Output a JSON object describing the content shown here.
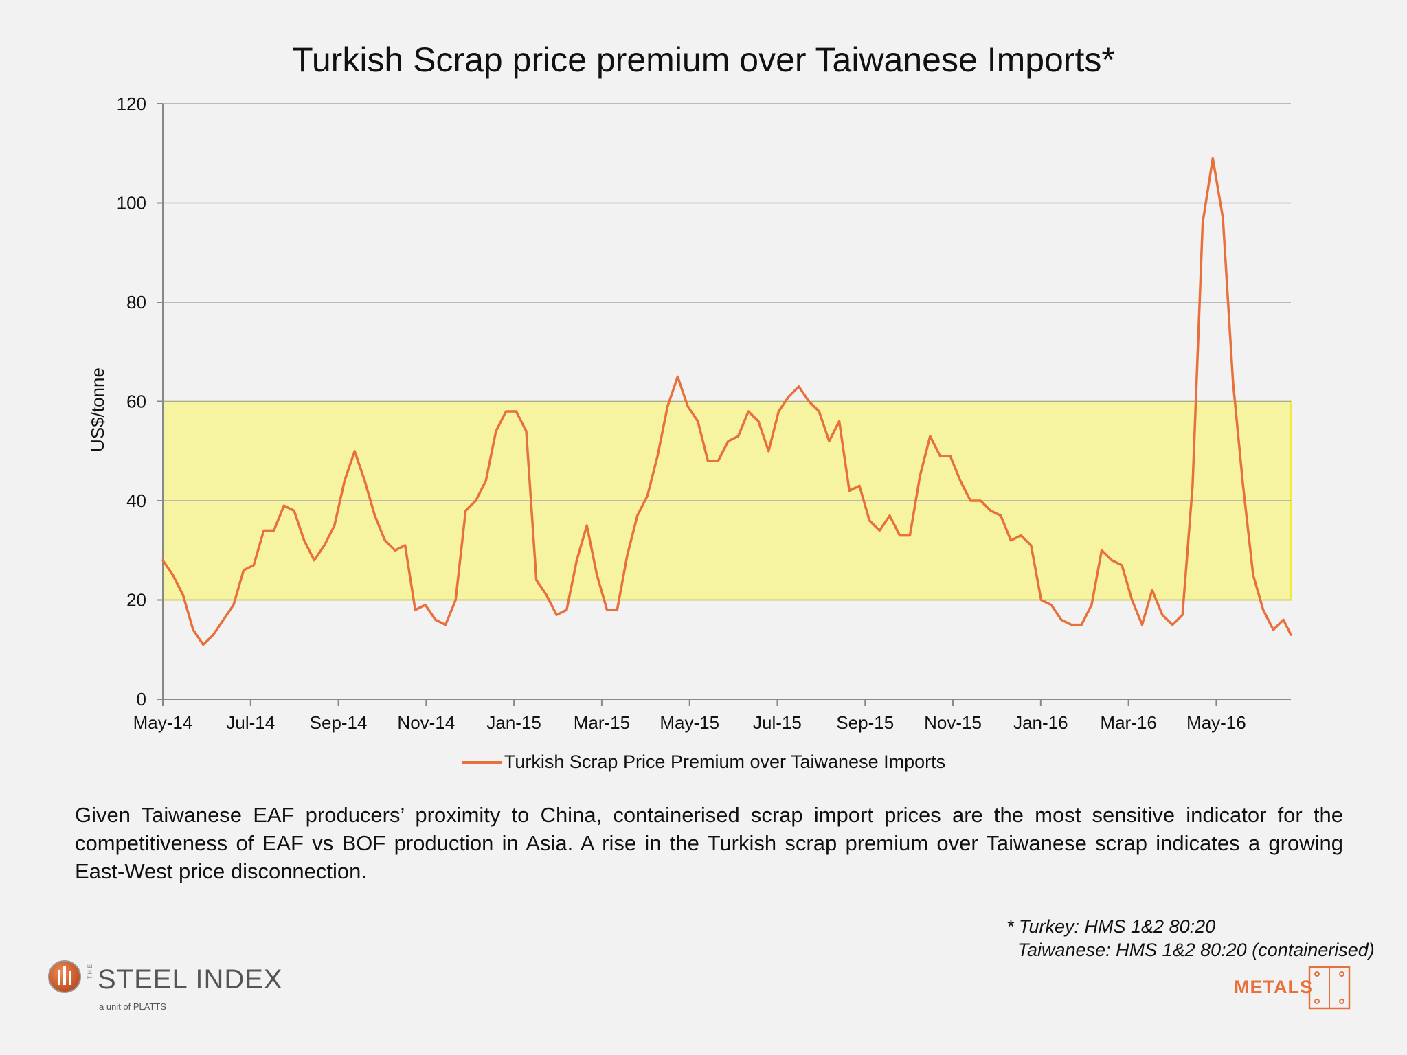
{
  "page": {
    "title": "Turkish Scrap price premium over Taiwanese Imports*"
  },
  "chart_data": {
    "type": "line",
    "title": "Turkish Scrap price premium over Taiwanese Imports*",
    "ylabel": "US$/tonne",
    "xlabel": "",
    "ylim": [
      0,
      120
    ],
    "yticks": [
      0,
      20,
      40,
      60,
      80,
      100,
      120
    ],
    "grid": true,
    "x_tick_labels": [
      "May-14",
      "Jul-14",
      "Sep-14",
      "Nov-14",
      "Jan-15",
      "Mar-15",
      "May-15",
      "Jul-15",
      "Sep-15",
      "Nov-15",
      "Jan-16",
      "Mar-16",
      "May-16"
    ],
    "x_range_months": [
      0,
      25.7
    ],
    "highlight_band": {
      "from": 20,
      "to": 60,
      "color": "#f7f59a"
    },
    "legend_position": "bottom-center",
    "series": [
      {
        "name": "Turkish Scrap Price Premium over Taiwanese Imports",
        "color": "#e8703a",
        "x_months": [
          0,
          0.23,
          0.46,
          0.69,
          0.92,
          1.15,
          1.38,
          1.61,
          1.84,
          2.07,
          2.3,
          2.53,
          2.76,
          2.99,
          3.22,
          3.45,
          3.68,
          3.91,
          4.14,
          4.37,
          4.6,
          4.83,
          5.06,
          5.29,
          5.52,
          5.75,
          5.98,
          6.21,
          6.44,
          6.67,
          6.9,
          7.13,
          7.36,
          7.59,
          7.82,
          8.05,
          8.28,
          8.51,
          8.74,
          8.97,
          9.2,
          9.43,
          9.66,
          9.89,
          10.12,
          10.35,
          10.58,
          10.81,
          11.04,
          11.27,
          11.5,
          11.73,
          11.96,
          12.19,
          12.42,
          12.65,
          12.88,
          13.11,
          13.34,
          13.57,
          13.8,
          14.03,
          14.26,
          14.49,
          14.72,
          14.95,
          15.18,
          15.41,
          15.64,
          15.87,
          16.1,
          16.33,
          16.56,
          16.79,
          17.02,
          17.25,
          17.48,
          17.71,
          17.94,
          18.17,
          18.4,
          18.63,
          18.86,
          19.09,
          19.32,
          19.55,
          19.78,
          20.01,
          20.24,
          20.47,
          20.7,
          20.93,
          21.16,
          21.39,
          21.62,
          21.85,
          22.08,
          22.31,
          22.54,
          22.77,
          23.0,
          23.23,
          23.46,
          23.69,
          23.92,
          24.15,
          24.38,
          24.61,
          24.84,
          25.07,
          25.3,
          25.53,
          25.7
        ],
        "values": [
          28,
          25,
          21,
          14,
          11,
          13,
          16,
          19,
          26,
          27,
          34,
          34,
          39,
          38,
          32,
          28,
          31,
          35,
          44,
          50,
          44,
          37,
          32,
          30,
          31,
          18,
          19,
          16,
          15,
          20,
          38,
          40,
          44,
          54,
          58,
          58,
          54,
          24,
          21,
          17,
          18,
          28,
          35,
          25,
          18,
          18,
          29,
          37,
          41,
          49,
          59,
          65,
          59,
          56,
          48,
          48,
          52,
          53,
          58,
          56,
          50,
          58,
          61,
          63,
          60,
          58,
          52,
          56,
          42,
          43,
          36,
          34,
          37,
          33,
          33,
          45,
          53,
          49,
          49,
          44,
          40,
          40,
          38,
          37,
          32,
          33,
          31,
          20,
          19,
          16,
          15,
          15,
          19,
          30,
          28,
          27,
          20,
          15,
          22,
          17,
          15,
          17,
          43,
          96,
          109,
          97,
          64,
          43,
          25,
          18,
          14,
          16,
          13
        ]
      }
    ]
  },
  "description": "Given Taiwanese EAF producers’ proximity to China, containerised scrap import prices are the most sensitive indicator for the competitiveness of EAF vs BOF production in Asia. A rise in the Turkish scrap premium over Taiwanese scrap indicates a growing East-West price disconnection.",
  "footnote": {
    "line1": "* Turkey: HMS 1&2 80:20",
    "line2": "Taiwanese: HMS 1&2 80:20 (containerised)"
  },
  "logo": {
    "the": "THE",
    "brand": "STEEL INDEX",
    "unit": "a unit of PLATTS"
  },
  "metals_logo": {
    "text": "METALS",
    "color": "#e8703a"
  }
}
